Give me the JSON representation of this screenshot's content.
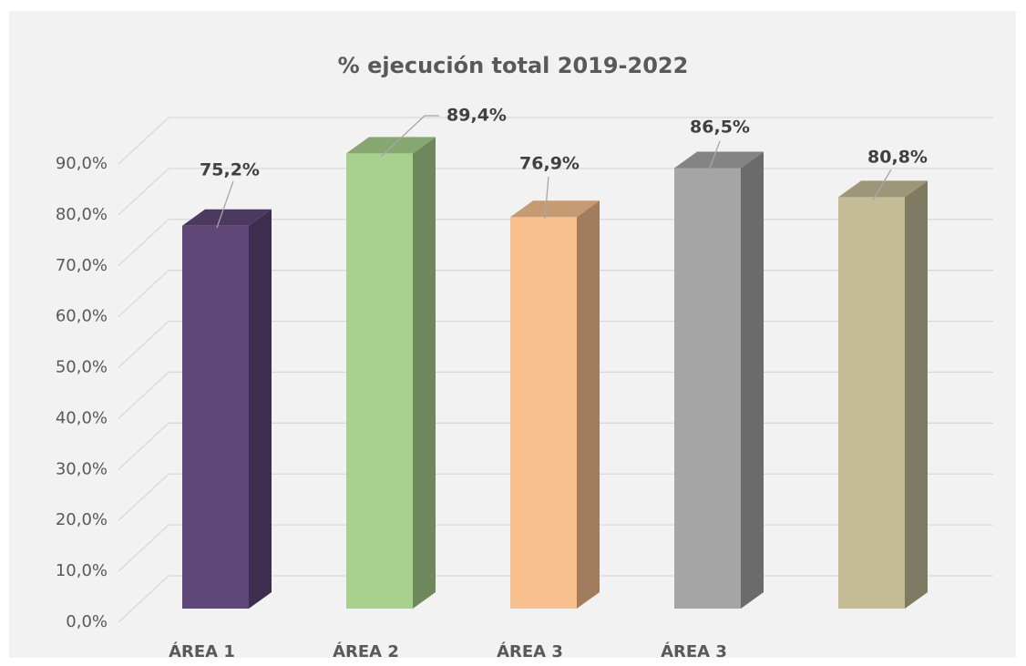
{
  "chart_data": {
    "type": "bar3d",
    "title": "% ejecución total 2019-2022",
    "categories": [
      "ÁREA 1",
      "ÁREA 2",
      "ÁREA 3",
      "ÁREA 3",
      null
    ],
    "values": [
      75.2,
      89.4,
      76.9,
      86.5,
      80.8
    ],
    "value_labels": [
      "75,2%",
      "89,4%",
      "76,9%",
      "86,5%",
      "80,8%"
    ],
    "colors": [
      "#5f4778",
      "#a9d18e",
      "#f8c08f",
      "#a5a5a5",
      "#c4bc96"
    ],
    "ylim": [
      0,
      90
    ],
    "yticks": [
      {
        "value": 0,
        "label": "0,0%"
      },
      {
        "value": 10,
        "label": "10,0%"
      },
      {
        "value": 20,
        "label": "20,0%"
      },
      {
        "value": 30,
        "label": "30,0%"
      },
      {
        "value": 40,
        "label": "40,0%"
      },
      {
        "value": 50,
        "label": "50,0%"
      },
      {
        "value": 60,
        "label": "60,0%"
      },
      {
        "value": 70,
        "label": "70,0%"
      },
      {
        "value": 80,
        "label": "80,0%"
      },
      {
        "value": 90,
        "label": "90,0%"
      }
    ],
    "grid": true
  }
}
